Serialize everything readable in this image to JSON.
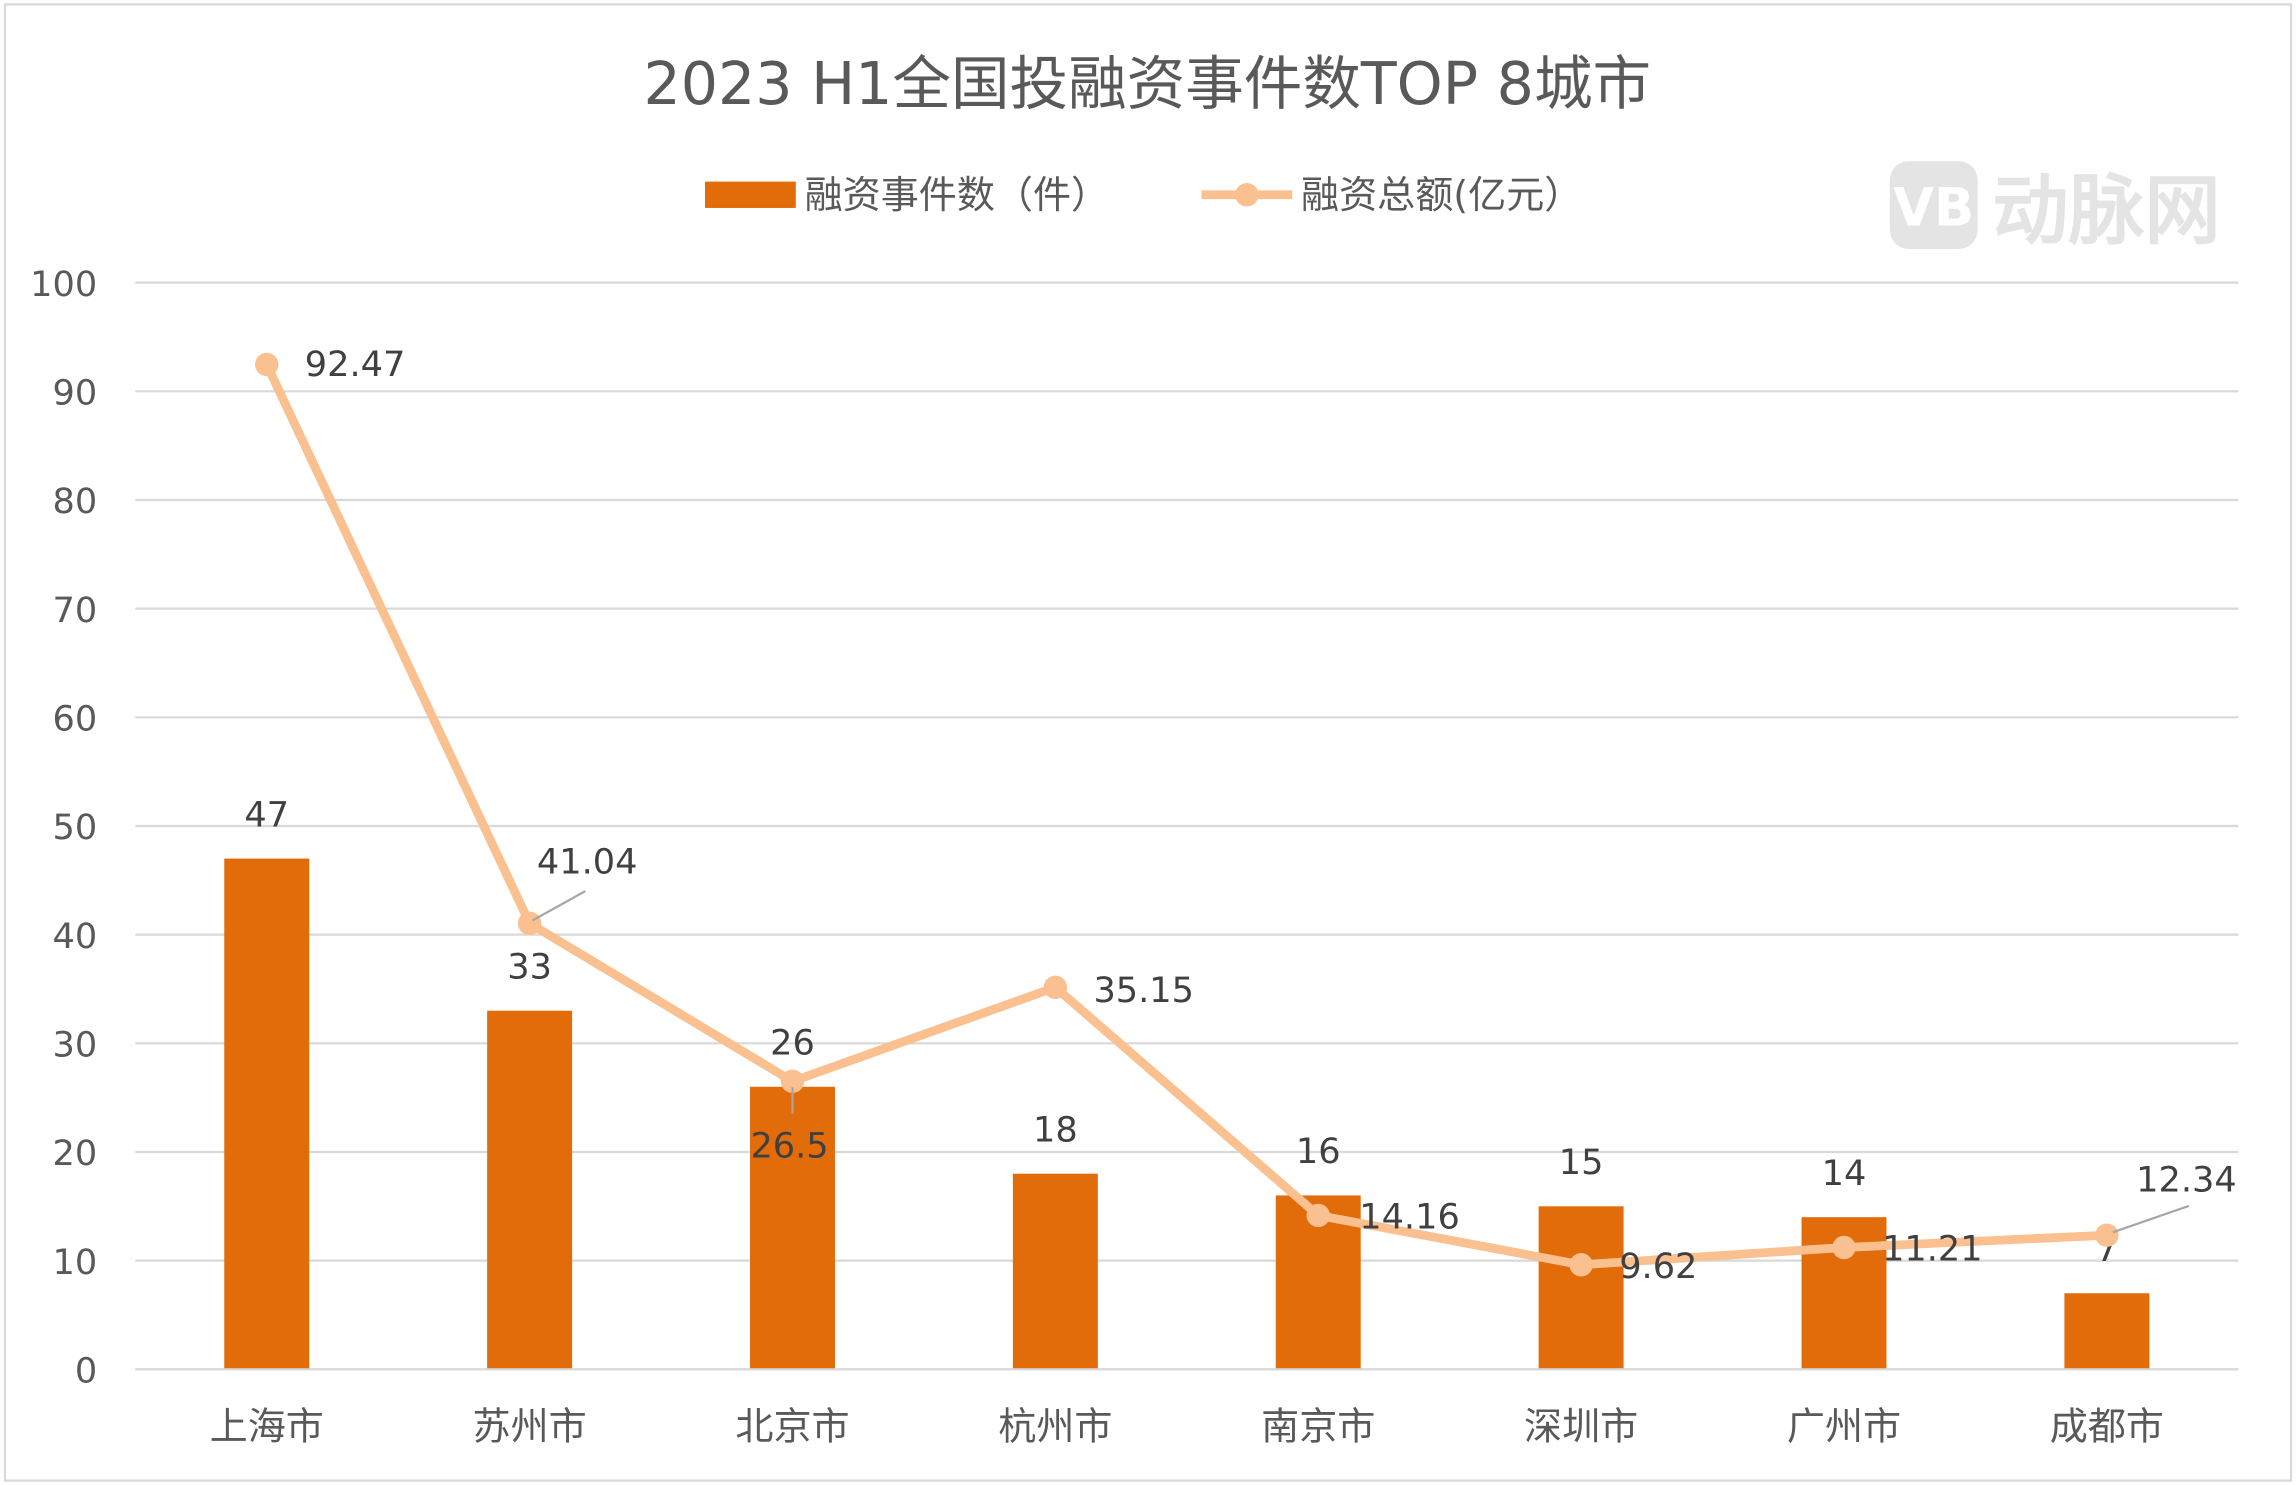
{
  "chart_data": {
    "type": "bar+line",
    "title": "2023 H1全国投融资事件数TOP 8城市",
    "categories": [
      "上海市",
      "苏州市",
      "北京市",
      "杭州市",
      "南京市",
      "深圳市",
      "广州市",
      "成都市"
    ],
    "series": [
      {
        "name": "融资事件数（件）",
        "type": "bar",
        "color": "#E36C0A",
        "values": [
          47,
          33,
          26,
          18,
          16,
          15,
          14,
          7
        ]
      },
      {
        "name": "融资总额(亿元）",
        "type": "line",
        "color": "#FAC090",
        "values": [
          92.47,
          41.04,
          26.5,
          35.15,
          14.16,
          9.62,
          11.21,
          12.34
        ]
      }
    ],
    "ylim": [
      0,
      100
    ],
    "yticks": [
      0,
      10,
      20,
      30,
      40,
      50,
      60,
      70,
      80,
      90,
      100
    ],
    "grid": true,
    "legend_position": "top"
  },
  "watermark": "动脉网"
}
